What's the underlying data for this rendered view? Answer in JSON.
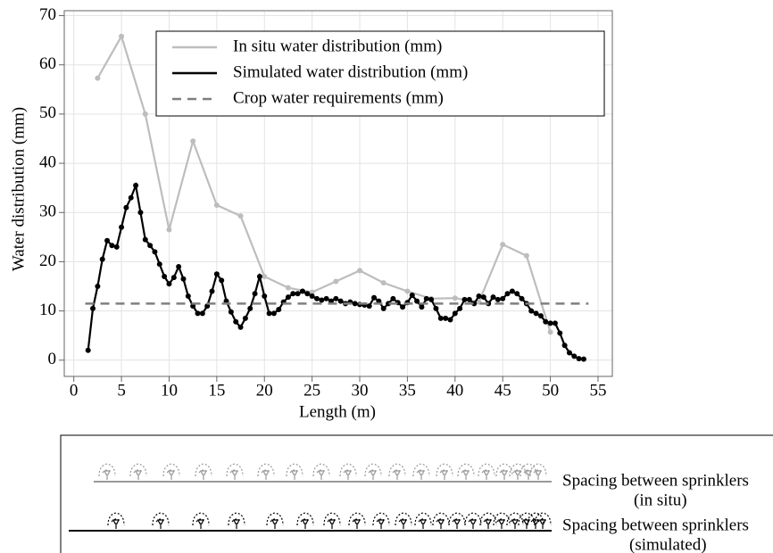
{
  "chart_data": {
    "type": "line",
    "xlabel": "Length (m)",
    "ylabel": "Water distribution (mm)",
    "xlim": [
      -1,
      56.5
    ],
    "ylim": [
      -3.3,
      71
    ],
    "xticks": [
      0,
      5,
      10,
      15,
      20,
      25,
      30,
      35,
      40,
      45,
      50,
      55
    ],
    "yticks": [
      0,
      10,
      20,
      30,
      40,
      50,
      60,
      70
    ],
    "grid": true,
    "legend": "upper right",
    "series": [
      {
        "name": "In situ water distribution (mm)",
        "color": "#bdbdbd",
        "style": "solid",
        "markers": true,
        "x": [
          2.5,
          5,
          7.5,
          10,
          12.5,
          15,
          17.5,
          20,
          22.5,
          25,
          27.5,
          30,
          32.5,
          35,
          37.5,
          40,
          42.5,
          45,
          47.5,
          50
        ],
        "values": [
          57.3,
          65.8,
          50,
          26.5,
          44.5,
          31.5,
          29.3,
          17,
          14.7,
          13.8,
          16,
          18.2,
          15.7,
          14,
          12.5,
          12.6,
          11.8,
          23.5,
          21.2,
          5.7
        ]
      },
      {
        "name": "Simulated water distribution (mm)",
        "color": "#000000",
        "style": "solid",
        "markers": true,
        "x": [
          1.5,
          2,
          2.5,
          3,
          3.5,
          4,
          4.5,
          5,
          5.5,
          6,
          6.5,
          7,
          7.5,
          8,
          8.5,
          9,
          9.5,
          10,
          10.5,
          11,
          11.5,
          12,
          12.5,
          13,
          13.5,
          14,
          14.5,
          15,
          15.5,
          16,
          16.5,
          17,
          17.5,
          18,
          18.5,
          19,
          19.5,
          20,
          20.5,
          21,
          21.5,
          22,
          22.5,
          23,
          23.5,
          24,
          24.5,
          25,
          25.5,
          26,
          26.5,
          27,
          27.5,
          28,
          28.5,
          29,
          29.5,
          30,
          30.5,
          31,
          31.5,
          32,
          32.5,
          33,
          33.5,
          34,
          34.5,
          35,
          35.5,
          36,
          36.5,
          37,
          37.5,
          38,
          38.5,
          39,
          39.5,
          40,
          40.5,
          41,
          41.5,
          42,
          42.5,
          43,
          43.5,
          44,
          44.5,
          45,
          45.5,
          46,
          46.5,
          47,
          47.5,
          48,
          48.5,
          49,
          49.5,
          50,
          50.5,
          51,
          51.5,
          52,
          52.5,
          53,
          53.5
        ],
        "values": [
          2,
          10.5,
          15,
          20.5,
          24.3,
          23.3,
          23,
          27,
          31,
          33,
          35.5,
          30,
          24.5,
          23.3,
          22,
          19.5,
          17,
          15.5,
          16.8,
          19,
          16.5,
          13,
          11,
          9.5,
          9.5,
          11,
          14,
          17.5,
          16.2,
          12,
          9.8,
          7.8,
          6.7,
          8.5,
          10.5,
          13.5,
          17,
          13,
          9.5,
          9.5,
          10.3,
          11.8,
          12.8,
          13.5,
          13.5,
          14,
          13.5,
          13,
          12.5,
          12.2,
          12.5,
          12,
          12.5,
          12,
          11.5,
          11.8,
          11.5,
          11.3,
          11.2,
          11,
          12.7,
          12,
          10.5,
          11.5,
          12.5,
          11.7,
          10.8,
          11.7,
          13.2,
          12,
          10.8,
          12.5,
          12.3,
          10.5,
          8.5,
          8.5,
          8.2,
          9.5,
          10.5,
          12.3,
          12.3,
          11.5,
          13,
          12.8,
          11.5,
          12.8,
          12.3,
          12.5,
          13.5,
          14,
          13.5,
          12.5,
          11.5,
          10,
          9.5,
          9,
          7.8,
          7.5,
          7.5,
          5.5,
          3,
          1.5,
          0.8,
          0.3,
          0.2
        ]
      },
      {
        "name": "Crop water requirements (mm)",
        "color": "#7f7f7f",
        "style": "dashed",
        "markers": false,
        "x": [
          1.2,
          54
        ],
        "values": [
          11.5,
          11.5
        ]
      }
    ]
  },
  "sprinkler_diagram": {
    "labels": [
      "Spacing between sprinklers",
      "(in situ)",
      "Spacing between sprinklers",
      "(simulated)"
    ]
  }
}
